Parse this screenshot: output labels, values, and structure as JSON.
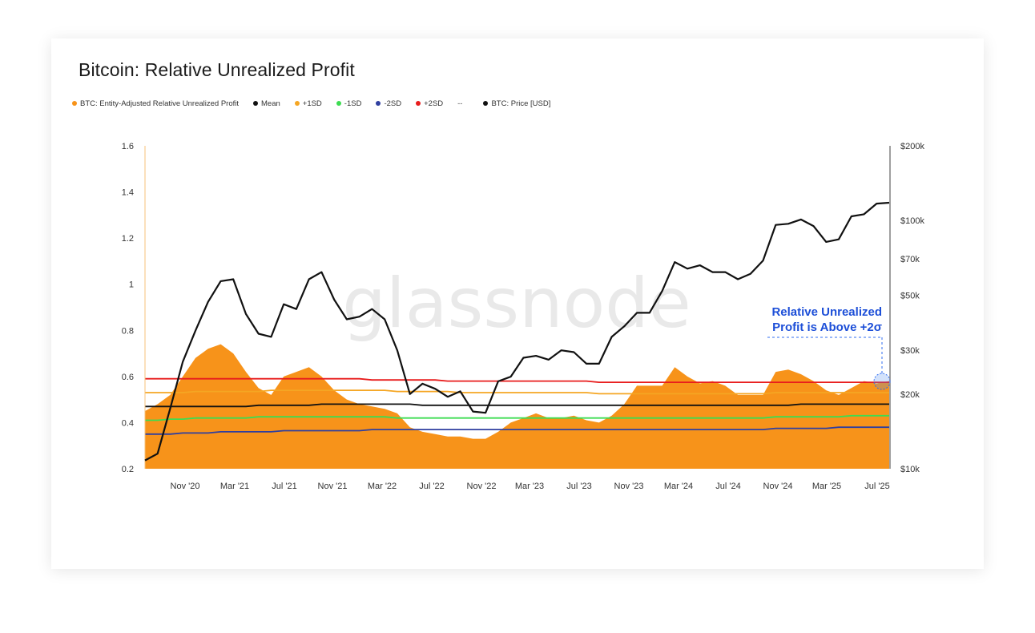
{
  "title": "Bitcoin: Relative Unrealized Profit",
  "watermark": "glassnode",
  "legend": [
    {
      "label": "BTC: Entity-Adjusted Relative Unrealized Profit",
      "color": "#f7931a",
      "marker": "dot"
    },
    {
      "label": "Mean",
      "color": "#111111",
      "marker": "dot"
    },
    {
      "label": "+1SD",
      "color": "#f5a623",
      "marker": "dot"
    },
    {
      "label": "-1SD",
      "color": "#3ddc52",
      "marker": "dot"
    },
    {
      "label": "-2SD",
      "color": "#2f3fa0",
      "marker": "dot"
    },
    {
      "label": "+2SD",
      "color": "#e81c1c",
      "marker": "dot"
    },
    {
      "label": "--",
      "color": "#555555",
      "marker": "none"
    },
    {
      "label": "BTC: Price [USD]",
      "color": "#111111",
      "marker": "dot"
    }
  ],
  "annotation": {
    "line1": "Relative Unrealized",
    "line2": "Profit is Above +2σ",
    "color": "#1d4fd8"
  },
  "chart_data": {
    "type": "area",
    "title": "Bitcoin: Relative Unrealized Profit",
    "x_ticks": [
      "Nov '20",
      "Mar '21",
      "Jul '21",
      "Nov '21",
      "Mar '22",
      "Jul '22",
      "Nov '22",
      "Mar '23",
      "Jul '23",
      "Nov '23",
      "Mar '24",
      "Jul '24",
      "Nov '24",
      "Mar '25",
      "Jul '25"
    ],
    "x": [
      "2020-09",
      "2020-10",
      "2020-11",
      "2020-12",
      "2021-01",
      "2021-02",
      "2021-03",
      "2021-04",
      "2021-05",
      "2021-06",
      "2021-07",
      "2021-08",
      "2021-09",
      "2021-10",
      "2021-11",
      "2021-12",
      "2022-01",
      "2022-02",
      "2022-03",
      "2022-04",
      "2022-05",
      "2022-06",
      "2022-07",
      "2022-08",
      "2022-09",
      "2022-10",
      "2022-11",
      "2022-12",
      "2023-01",
      "2023-02",
      "2023-03",
      "2023-04",
      "2023-05",
      "2023-06",
      "2023-07",
      "2023-08",
      "2023-09",
      "2023-10",
      "2023-11",
      "2023-12",
      "2024-01",
      "2024-02",
      "2024-03",
      "2024-04",
      "2024-05",
      "2024-06",
      "2024-07",
      "2024-08",
      "2024-09",
      "2024-10",
      "2024-11",
      "2024-12",
      "2025-01",
      "2025-02",
      "2025-03",
      "2025-04",
      "2025-05",
      "2025-06",
      "2025-07",
      "2025-08"
    ],
    "y_left_ticks": [
      "0.2",
      "0.4",
      "0.6",
      "0.8",
      "1",
      "1.2",
      "1.4",
      "1.6"
    ],
    "y_left_range": [
      0.2,
      1.6
    ],
    "y_right_ticks": [
      "$10k",
      "$20k",
      "$30k",
      "$50k",
      "$70k",
      "$100k",
      "$200k"
    ],
    "y_right_tick_values": [
      10000,
      20000,
      30000,
      50000,
      70000,
      100000,
      200000
    ],
    "y_right_range": [
      10000,
      200000
    ],
    "y_right_scale": "log",
    "series": [
      {
        "name": "BTC: Entity-Adjusted Relative Unrealized Profit",
        "axis": "left",
        "style": "area",
        "color": "#f7931a",
        "values": [
          0.45,
          0.48,
          0.52,
          0.6,
          0.68,
          0.72,
          0.74,
          0.7,
          0.62,
          0.55,
          0.52,
          0.6,
          0.62,
          0.64,
          0.6,
          0.54,
          0.5,
          0.48,
          0.47,
          0.46,
          0.44,
          0.38,
          0.36,
          0.35,
          0.34,
          0.34,
          0.33,
          0.33,
          0.36,
          0.4,
          0.42,
          0.44,
          0.42,
          0.42,
          0.43,
          0.41,
          0.4,
          0.43,
          0.48,
          0.56,
          0.56,
          0.56,
          0.64,
          0.6,
          0.57,
          0.58,
          0.56,
          0.52,
          0.52,
          0.52,
          0.62,
          0.63,
          0.61,
          0.58,
          0.54,
          0.52,
          0.55,
          0.58,
          0.57,
          0.58
        ]
      },
      {
        "name": "Mean",
        "axis": "left",
        "style": "line",
        "color": "#111111",
        "values": [
          0.47,
          0.47,
          0.47,
          0.47,
          0.47,
          0.47,
          0.47,
          0.47,
          0.47,
          0.475,
          0.475,
          0.475,
          0.475,
          0.475,
          0.48,
          0.48,
          0.48,
          0.48,
          0.48,
          0.48,
          0.48,
          0.48,
          0.475,
          0.475,
          0.475,
          0.475,
          0.475,
          0.475,
          0.475,
          0.475,
          0.475,
          0.475,
          0.475,
          0.475,
          0.475,
          0.475,
          0.475,
          0.475,
          0.475,
          0.475,
          0.475,
          0.475,
          0.475,
          0.475,
          0.475,
          0.475,
          0.475,
          0.475,
          0.475,
          0.475,
          0.475,
          0.475,
          0.48,
          0.48,
          0.48,
          0.48,
          0.48,
          0.48,
          0.48,
          0.48
        ]
      },
      {
        "name": "+1SD",
        "axis": "left",
        "style": "line",
        "color": "#f5a623",
        "values": [
          0.53,
          0.53,
          0.53,
          0.53,
          0.535,
          0.535,
          0.535,
          0.535,
          0.535,
          0.535,
          0.54,
          0.54,
          0.54,
          0.54,
          0.54,
          0.54,
          0.54,
          0.54,
          0.54,
          0.54,
          0.535,
          0.535,
          0.535,
          0.535,
          0.535,
          0.53,
          0.53,
          0.53,
          0.53,
          0.53,
          0.53,
          0.53,
          0.53,
          0.53,
          0.53,
          0.53,
          0.525,
          0.525,
          0.525,
          0.525,
          0.525,
          0.525,
          0.525,
          0.525,
          0.525,
          0.525,
          0.525,
          0.525,
          0.525,
          0.525,
          0.53,
          0.53,
          0.53,
          0.53,
          0.53,
          0.53,
          0.53,
          0.53,
          0.53,
          0.53
        ]
      },
      {
        "name": "-1SD",
        "axis": "left",
        "style": "line",
        "color": "#3ddc52",
        "values": [
          0.41,
          0.41,
          0.415,
          0.415,
          0.42,
          0.42,
          0.42,
          0.42,
          0.42,
          0.425,
          0.425,
          0.425,
          0.425,
          0.425,
          0.425,
          0.425,
          0.425,
          0.425,
          0.425,
          0.425,
          0.42,
          0.42,
          0.42,
          0.42,
          0.42,
          0.42,
          0.42,
          0.42,
          0.42,
          0.42,
          0.42,
          0.42,
          0.42,
          0.42,
          0.42,
          0.42,
          0.42,
          0.42,
          0.42,
          0.42,
          0.42,
          0.42,
          0.42,
          0.42,
          0.42,
          0.42,
          0.42,
          0.42,
          0.42,
          0.42,
          0.425,
          0.425,
          0.425,
          0.425,
          0.425,
          0.425,
          0.43,
          0.43,
          0.43,
          0.43
        ]
      },
      {
        "name": "-2SD",
        "axis": "left",
        "style": "line",
        "color": "#2f3fa0",
        "values": [
          0.35,
          0.35,
          0.35,
          0.355,
          0.355,
          0.355,
          0.36,
          0.36,
          0.36,
          0.36,
          0.36,
          0.365,
          0.365,
          0.365,
          0.365,
          0.365,
          0.365,
          0.365,
          0.37,
          0.37,
          0.37,
          0.37,
          0.37,
          0.37,
          0.37,
          0.37,
          0.37,
          0.37,
          0.37,
          0.37,
          0.37,
          0.37,
          0.37,
          0.37,
          0.37,
          0.37,
          0.37,
          0.37,
          0.37,
          0.37,
          0.37,
          0.37,
          0.37,
          0.37,
          0.37,
          0.37,
          0.37,
          0.37,
          0.37,
          0.37,
          0.375,
          0.375,
          0.375,
          0.375,
          0.375,
          0.38,
          0.38,
          0.38,
          0.38,
          0.38
        ]
      },
      {
        "name": "+2SD",
        "axis": "left",
        "style": "line",
        "color": "#e81c1c",
        "values": [
          0.59,
          0.59,
          0.59,
          0.59,
          0.59,
          0.59,
          0.59,
          0.59,
          0.59,
          0.59,
          0.59,
          0.59,
          0.59,
          0.59,
          0.59,
          0.59,
          0.59,
          0.59,
          0.585,
          0.585,
          0.585,
          0.585,
          0.585,
          0.585,
          0.58,
          0.58,
          0.58,
          0.58,
          0.58,
          0.58,
          0.58,
          0.58,
          0.58,
          0.58,
          0.58,
          0.58,
          0.575,
          0.575,
          0.575,
          0.575,
          0.575,
          0.575,
          0.575,
          0.575,
          0.575,
          0.575,
          0.575,
          0.575,
          0.575,
          0.575,
          0.575,
          0.575,
          0.575,
          0.575,
          0.575,
          0.575,
          0.575,
          0.575,
          0.575,
          0.575
        ]
      },
      {
        "name": "BTC: Price [USD]",
        "axis": "right",
        "style": "line",
        "color": "#111111",
        "values": [
          10800,
          11500,
          17500,
          27000,
          36000,
          47000,
          57000,
          58000,
          42000,
          35000,
          34000,
          46000,
          44000,
          58000,
          62000,
          48000,
          40000,
          41000,
          44000,
          40000,
          30000,
          20000,
          22000,
          21000,
          19500,
          20500,
          17000,
          16800,
          22500,
          23500,
          28000,
          28500,
          27500,
          30000,
          29500,
          26500,
          26500,
          34000,
          37500,
          42500,
          42500,
          52000,
          68000,
          64000,
          66000,
          62000,
          62000,
          58000,
          61000,
          69000,
          96000,
          97000,
          101000,
          95000,
          82000,
          84000,
          104000,
          106000,
          117000,
          118000
        ]
      }
    ],
    "grid": false,
    "legend_position": "top-left"
  }
}
